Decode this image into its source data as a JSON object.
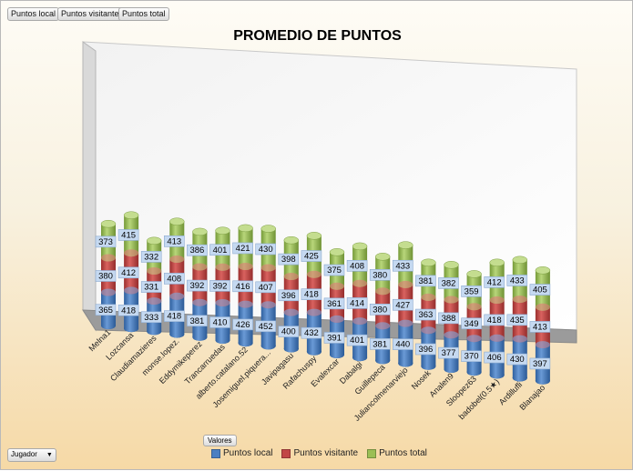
{
  "pivot_buttons": [
    "Puntos local",
    "Puntos visitante",
    "Puntos total"
  ],
  "valores_button": "Valores",
  "filter_button": {
    "label": "Jugador",
    "arrow": "▼"
  },
  "colors": {
    "local": "#4a7fc2",
    "visitante": "#c24746",
    "total": "#9bbf55"
  },
  "chart_data": {
    "type": "bar",
    "stacked": true,
    "title": "PROMEDIO DE PUNTOS",
    "categories": [
      "Melna1",
      "Lozcansa",
      "Claudiamazieres",
      "monse.lopez.",
      "Eddymikeperez",
      "Trancarruedas",
      "alberto.catalano.52",
      "Josemiguel.piquera...",
      "Javipagasu",
      "Rafachuspy",
      "Evalexcar",
      "Dabalgi",
      "Guillepeca",
      "Juliancolmenarviejo",
      "Nosek",
      "Analen9",
      "Sloopez63",
      "badobel(0.5★)",
      "Ardillufli",
      "Blanajao"
    ],
    "series": [
      {
        "name": "Puntos local",
        "values": [
          365,
          418,
          333,
          418,
          381,
          410,
          426,
          452,
          400,
          432,
          391,
          401,
          381,
          440,
          396,
          377,
          370,
          406,
          430,
          397
        ]
      },
      {
        "name": "Puntos visitante",
        "values": [
          380,
          412,
          331,
          408,
          392,
          392,
          416,
          407,
          396,
          418,
          361,
          414,
          380,
          427,
          363,
          388,
          349,
          418,
          435,
          413
        ]
      },
      {
        "name": "Puntos total",
        "values": [
          373,
          415,
          332,
          413,
          386,
          401,
          421,
          430,
          398,
          425,
          375,
          408,
          380,
          433,
          381,
          382,
          359,
          412,
          433,
          405
        ]
      }
    ],
    "legend_position": "bottom"
  }
}
